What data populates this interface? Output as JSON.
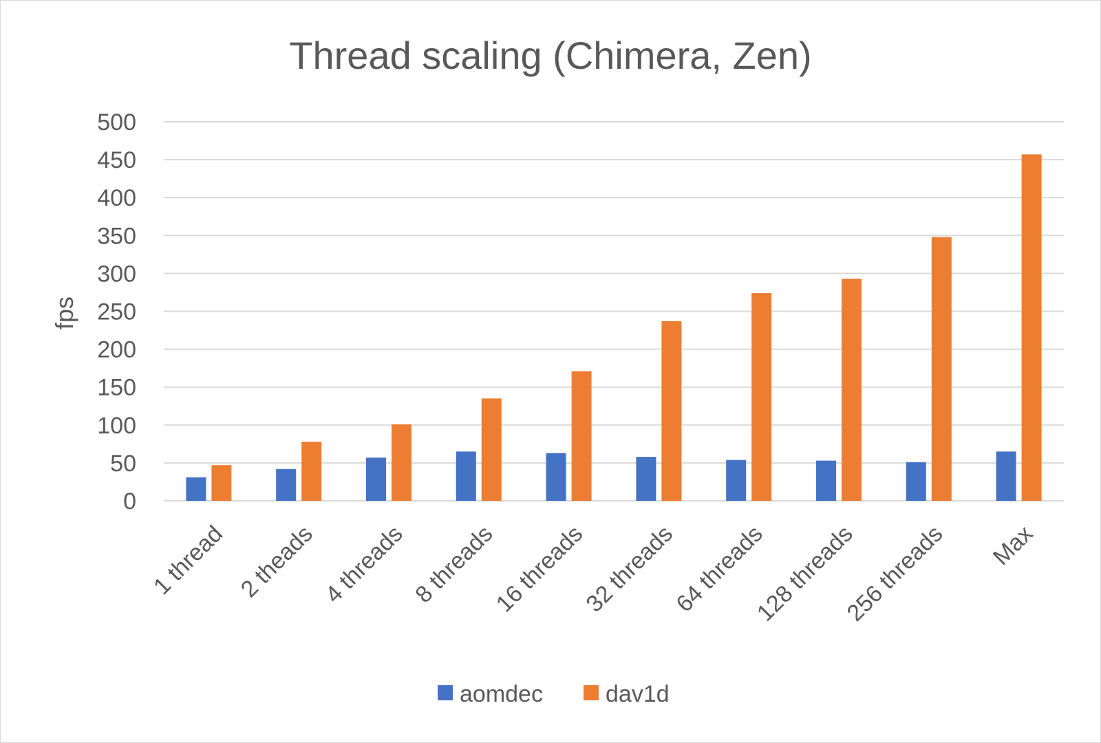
{
  "chart_data": {
    "type": "bar",
    "title": "Thread scaling (Chimera, Zen)",
    "xlabel": "",
    "ylabel": "fps",
    "ylim": [
      0,
      500
    ],
    "yticks": [
      0,
      50,
      100,
      150,
      200,
      250,
      300,
      350,
      400,
      450,
      500
    ],
    "grid": "horizontal",
    "legend_position": "bottom",
    "categories": [
      "1 thread",
      "2 theads",
      "4 threads",
      "8 threads",
      "16 threads",
      "32 threads",
      "64 threads",
      "128 threads",
      "256 threads",
      "Max"
    ],
    "series": [
      {
        "name": "aomdec",
        "color": "#4472c4",
        "values": [
          31,
          42,
          57,
          65,
          63,
          58,
          54,
          53,
          51,
          65
        ]
      },
      {
        "name": "dav1d",
        "color": "#ed7d31",
        "values": [
          47,
          78,
          101,
          135,
          171,
          237,
          274,
          293,
          348,
          457
        ]
      }
    ],
    "gridline_color": "#d9d9d9",
    "text_color": "#595959"
  }
}
